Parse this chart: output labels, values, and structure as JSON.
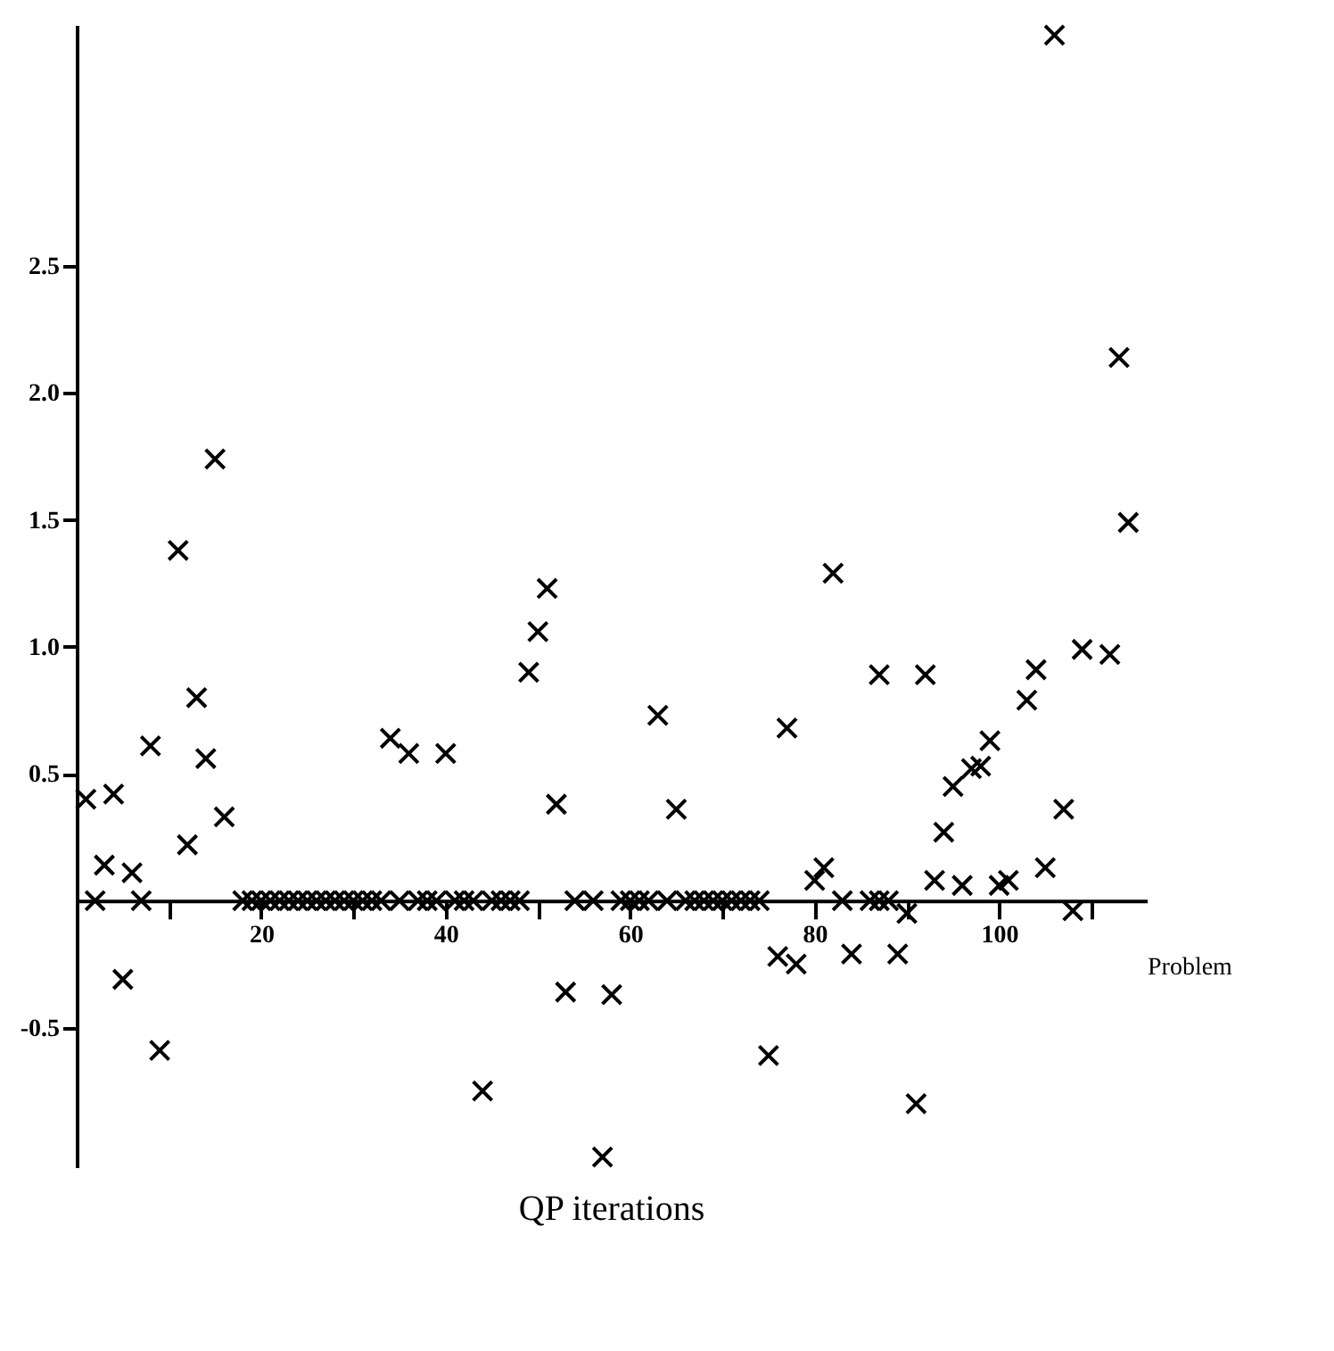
{
  "chart_data": {
    "type": "scatter",
    "title": "QP iterations",
    "xlabel": "Problem",
    "x": [
      1,
      2,
      3,
      4,
      5,
      6,
      7,
      8,
      9,
      11,
      12,
      13,
      14,
      15,
      16,
      18,
      19,
      20,
      21,
      22,
      23,
      24,
      25,
      26,
      27,
      28,
      29,
      30,
      31,
      32,
      33,
      34,
      35,
      36,
      37,
      38,
      39,
      40,
      41,
      42,
      43,
      44,
      45,
      46,
      47,
      48,
      49,
      50,
      51,
      52,
      53,
      54,
      56,
      57,
      58,
      59,
      60,
      61,
      62,
      63,
      64,
      65,
      66,
      67,
      68,
      69,
      70,
      71,
      72,
      73,
      74,
      75,
      76,
      77,
      78,
      80,
      81,
      82,
      83,
      84,
      86,
      87,
      87,
      88,
      89,
      90,
      91,
      92,
      93,
      94,
      95,
      96,
      97,
      98,
      99,
      100,
      101,
      103,
      104,
      105,
      106,
      107,
      108,
      109,
      112,
      113,
      114
    ],
    "series": [
      {
        "color": "#000000",
        "values": [
          0.4,
          0,
          0.14,
          0.42,
          -0.31,
          0.11,
          0,
          0.61,
          -0.59,
          1.38,
          0.22,
          0.8,
          0.56,
          1.74,
          0.33,
          0,
          0,
          0,
          0,
          0,
          0,
          0,
          0,
          0,
          0,
          0,
          0,
          0,
          0,
          0,
          0,
          0.64,
          0,
          0.58,
          0,
          0,
          0,
          0.58,
          0,
          0,
          0,
          -0.75,
          0,
          0,
          0,
          0,
          0.9,
          1.06,
          1.23,
          0.38,
          -0.36,
          0,
          0,
          -1.01,
          -0.37,
          0,
          0,
          0,
          0,
          0.73,
          0,
          0.36,
          0,
          0,
          0,
          0,
          0,
          0,
          0,
          0,
          0,
          -0.61,
          -0.22,
          0.68,
          -0.25,
          0.08,
          0.13,
          1.29,
          0,
          -0.21,
          0,
          0,
          0.89,
          0,
          -0.21,
          -0.05,
          -0.8,
          0.89,
          0.08,
          0.27,
          0.45,
          0.06,
          0.52,
          0.53,
          0.63,
          0.06,
          0.08,
          0.79,
          0.91,
          0.13,
          3.41,
          0.36,
          -0.04,
          0.99,
          0.97,
          2.14,
          1.49
        ]
      }
    ],
    "xlim": [
      0,
      116
    ],
    "ylim": [
      -1.05,
      3.45
    ],
    "xticks": [
      {
        "value": 10,
        "label": null
      },
      20,
      {
        "value": 30,
        "label": null
      },
      40,
      {
        "value": 50,
        "label": null
      },
      60,
      {
        "value": 70,
        "label": null
      },
      80,
      {
        "value": 90,
        "label": null
      },
      100,
      {
        "value": 110,
        "label": null
      }
    ],
    "yticks": [
      {
        "value": -0.5,
        "label": "-0.5"
      },
      {
        "value": 0.5,
        "label": "0.5"
      },
      {
        "value": 1,
        "label": "1.0"
      },
      {
        "value": 1.5,
        "label": "1.5"
      },
      {
        "value": 2,
        "label": "2.0"
      },
      {
        "value": 2.5,
        "label": "2.5"
      }
    ],
    "marker": "cross",
    "grid": false
  }
}
